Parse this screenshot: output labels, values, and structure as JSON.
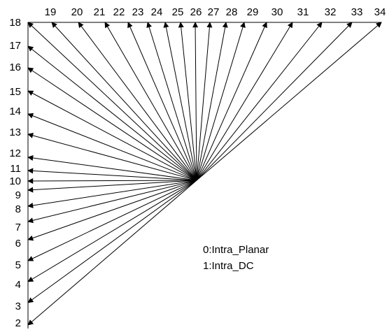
{
  "diagram": {
    "left_modes": [
      "18",
      "17",
      "16",
      "15",
      "14",
      "13",
      "12",
      "11",
      "10",
      "9",
      "8",
      "7",
      "6",
      "5",
      "4",
      "3",
      "2"
    ],
    "top_modes": [
      "19",
      "20",
      "21",
      "22",
      "23",
      "24",
      "25",
      "26",
      "27",
      "28",
      "29",
      "30",
      "31",
      "32",
      "33",
      "34"
    ],
    "legend": {
      "line1": "0:Intra_Planar",
      "line2": "1:Intra_DC"
    }
  }
}
